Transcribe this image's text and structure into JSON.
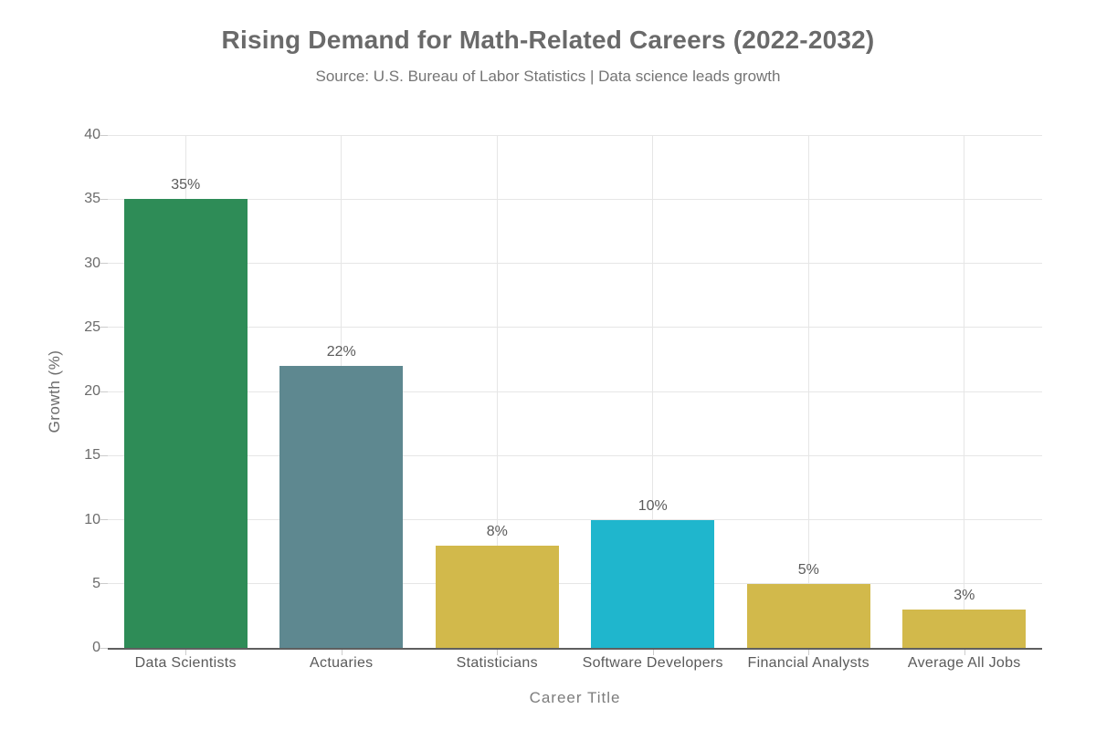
{
  "chart_data": {
    "type": "bar",
    "title": "Rising Demand for Math-Related Careers (2022-2032)",
    "subtitle": "Source: U.S. Bureau of Labor Statistics | Data science leads growth",
    "xlabel": "Career Title",
    "ylabel": "Growth (%)",
    "categories": [
      "Data Scientists",
      "Actuaries",
      "Statisticians",
      "Software Developers",
      "Financial Analysts",
      "Average All Jobs"
    ],
    "values": [
      35,
      22,
      8,
      10,
      5,
      3
    ],
    "value_labels": [
      "35%",
      "22%",
      "8%",
      "10%",
      "5%",
      "3%"
    ],
    "bar_colors": [
      "#2e8c57",
      "#5e8890",
      "#d2b94b",
      "#1fb6cd",
      "#d2b94b",
      "#d2b94b"
    ],
    "ylim": [
      0,
      40
    ],
    "yticks": [
      0,
      5,
      10,
      15,
      20,
      25,
      30,
      35,
      40
    ],
    "grid": {
      "horizontal": true,
      "vertical_at_category_centers": true
    },
    "legend": "none"
  },
  "style": {
    "background": "#ffffff",
    "grid_color": "#e6e6e6",
    "axis_line_color": "#5f5f5f",
    "tick_mark_color": "#cccccc",
    "title_color": "#6a6a6a",
    "subtitle_color": "#757575",
    "tick_label_color": "#6b6b6b",
    "value_label_color": "#5a5a5a",
    "axis_title_color": "#7d7d7d"
  }
}
